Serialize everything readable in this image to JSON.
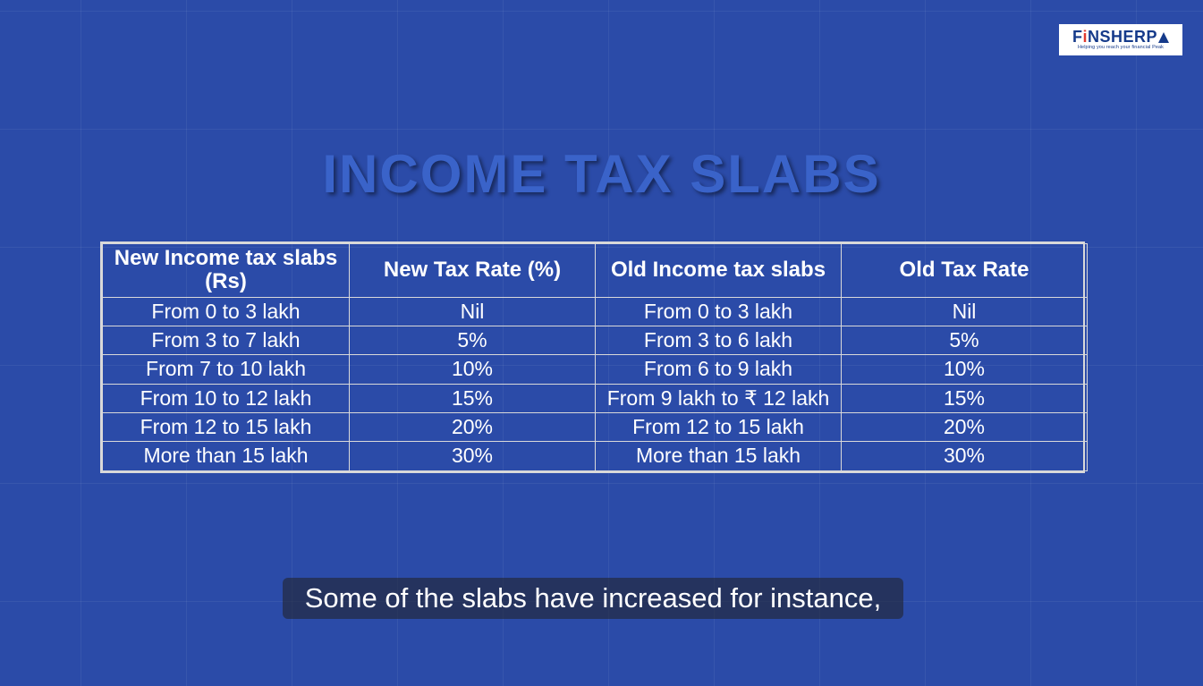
{
  "background": {
    "color": "#2b4ba8",
    "grid_color": "rgba(255,255,255,0.06)",
    "grid_cell_w": 118,
    "grid_cell_h": 132
  },
  "logo": {
    "brand_prefix": "F",
    "brand_accent": "i",
    "brand_rest": "NSHERP",
    "tagline": "Helping you reach your financial Peak",
    "text_color": "#153a8a",
    "accent_color": "#e03a2f",
    "bg_color": "#ffffff"
  },
  "title": {
    "text": "INCOME TAX SLABS",
    "color": "#3a63c9",
    "fontsize": 60,
    "shadow": "3px 3px 4px rgba(0,0,0,0.45)"
  },
  "table": {
    "border_color": "#d9d9d9",
    "text_color": "#ffffff",
    "header_fontsize": 24,
    "cell_fontsize": 23,
    "columns": [
      "New Income tax slabs (Rs)",
      "New Tax Rate (%)",
      "Old Income tax slabs",
      "Old Tax Rate"
    ],
    "rows": [
      [
        "From 0 to 3 lakh",
        "Nil",
        "From 0 to 3 lakh",
        "Nil"
      ],
      [
        "From 3 to 7 lakh",
        "5%",
        "From 3 to 6 lakh",
        "5%"
      ],
      [
        "From 7 to 10 lakh",
        "10%",
        "From  6 to 9 lakh",
        "10%"
      ],
      [
        "From 10 to 12 lakh",
        "15%",
        "From 9 lakh to ₹ 12 lakh",
        "15%"
      ],
      [
        "From 12 to 15 lakh",
        "20%",
        "From 12 to 15 lakh",
        "20%"
      ],
      [
        "More than 15 lakh",
        "30%",
        "More than 15 lakh",
        "30%"
      ]
    ]
  },
  "caption": {
    "text": "Some of the slabs have increased for instance,",
    "bg": "rgba(33,33,33,0.55)",
    "color": "#ffffff",
    "fontsize": 31
  }
}
